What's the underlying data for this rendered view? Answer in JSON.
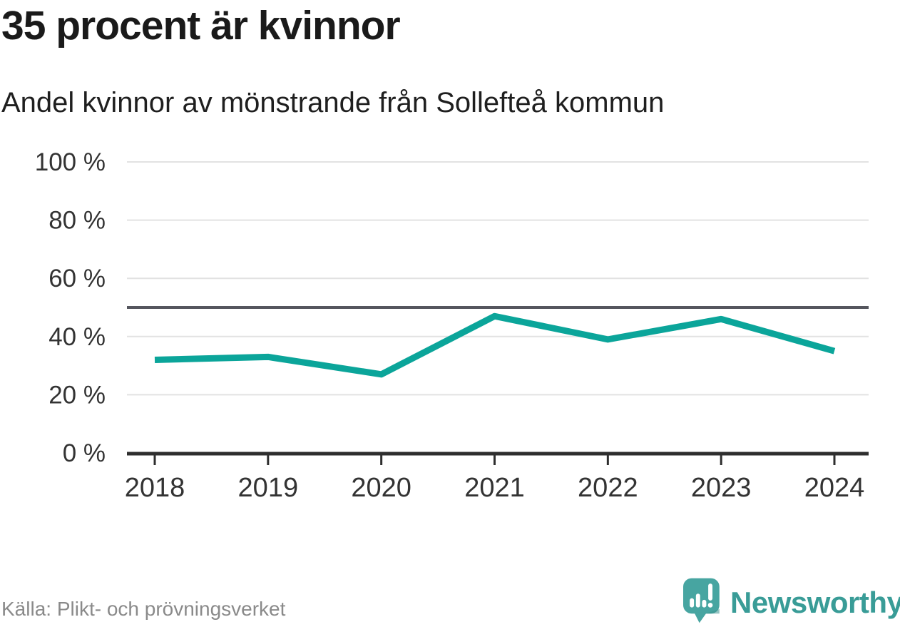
{
  "header": {
    "title": "35 procent är kvinnor",
    "subtitle": "Andel kvinnor av mönstrande från Sollefteå kommun"
  },
  "footer": {
    "source": "Källa: Plikt- och prövningsverket",
    "brand": "Newsworthy"
  },
  "colors": {
    "line": "#0ba59a",
    "grid": "#e2e2e2",
    "reference": "#55565e",
    "axis": "#2e2e2e",
    "label": "#333333",
    "source_text": "#8a8a8a",
    "brand_text": "#399c97",
    "brand_bubble": "#47a5a1"
  },
  "chart_data": {
    "type": "line",
    "title": "35 procent är kvinnor",
    "subtitle": "Andel kvinnor av mönstrande från Sollefteå kommun",
    "x": [
      2018,
      2019,
      2020,
      2021,
      2022,
      2023,
      2024
    ],
    "series": [
      {
        "name": "Andel kvinnor av mönstrande",
        "values": [
          32,
          33,
          27,
          47,
          39,
          46,
          35
        ]
      }
    ],
    "unit": "%",
    "ylim": [
      0,
      100
    ],
    "yticks": [
      0,
      20,
      40,
      60,
      80,
      100
    ],
    "ytick_format": "{v} %",
    "reference_line": 50,
    "grid": true,
    "legend_position": "none",
    "xlabel": "",
    "ylabel": ""
  }
}
